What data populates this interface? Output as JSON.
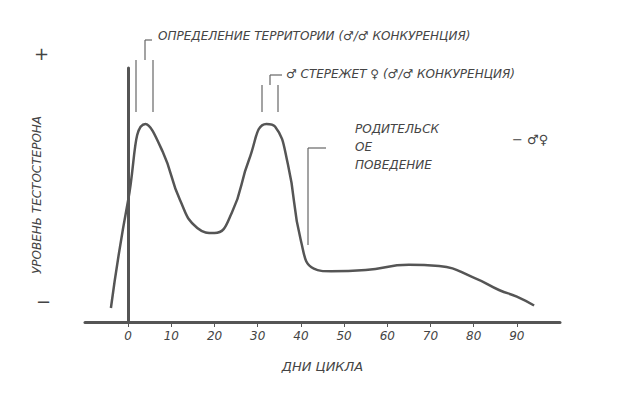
{
  "chart_data": {
    "type": "line",
    "x_label": "ДНИ ЦИКЛА",
    "y_label": "УРОВЕНЬ ТЕСТОСТЕРОНА",
    "y_end_labels": [
      "+",
      "−"
    ],
    "annotations": [
      "ОПРЕДЕЛЕНИЕ ТЕРРИТОРИИ (♂/♂ КОНКУРЕНЦИЯ)",
      "♂ СТЕРЕЖЕТ ♀ (♂/♂ КОНКУРЕНЦИЯ)",
      "РОДИТЕЛЬСКОЕ ПОВЕДЕНИЕ",
      "− ♂♀"
    ],
    "x": [
      -4,
      0,
      4,
      8,
      12,
      16,
      20,
      24,
      28,
      32,
      34,
      37,
      40,
      43,
      47,
      55,
      65,
      72,
      80,
      86,
      90,
      94
    ],
    "values": [
      0.55,
      4.8,
      7.8,
      6.7,
      4.8,
      3.7,
      3.5,
      4.3,
      6.4,
      7.8,
      7.7,
      6.2,
      3.2,
      2.1,
      2.0,
      2.05,
      2.25,
      2.2,
      1.75,
      1.25,
      1.0,
      0.65
    ],
    "color": "#555555",
    "line_style": "smooth",
    "xlim": [
      -10,
      100
    ],
    "xticks": [
      0,
      10,
      20,
      30,
      40,
      50,
      60,
      70,
      80,
      90
    ],
    "ylim": [
      0,
      10
    ],
    "yticks": [],
    "grid": false,
    "tick_labels": "x"
  }
}
